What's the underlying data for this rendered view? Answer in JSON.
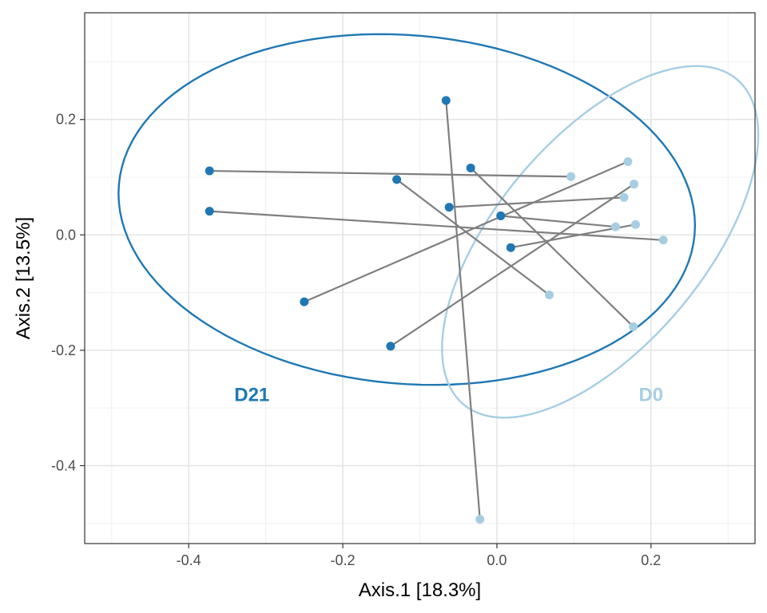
{
  "chart_data": {
    "type": "scatter",
    "xlabel": "Axis.1   [18.3%]",
    "ylabel": "Axis.2   [13.5%]",
    "xlim": [
      -0.535,
      0.335
    ],
    "ylim": [
      -0.535,
      0.385
    ],
    "x_ticks": [
      -0.4,
      -0.2,
      0.0,
      0.2
    ],
    "x_tick_labels": [
      "-0.4",
      "-0.2",
      "0.0",
      "0.2"
    ],
    "y_ticks": [
      -0.4,
      -0.2,
      0.0,
      0.2
    ],
    "y_tick_labels": [
      "-0.4",
      "-0.2",
      "0.0",
      "0.2"
    ],
    "grid": true,
    "colors": {
      "D21": "#1f78b4",
      "D0": "#a6cee3",
      "connector": "#7f7f7f"
    },
    "groups": [
      {
        "name": "D21",
        "label": "D21",
        "points": [
          {
            "id": "s1",
            "x": -0.373,
            "y": 0.111
          },
          {
            "id": "s2",
            "x": -0.373,
            "y": 0.041
          },
          {
            "id": "s3",
            "x": -0.13,
            "y": 0.096
          },
          {
            "id": "s4",
            "x": -0.066,
            "y": 0.233
          },
          {
            "id": "s5",
            "x": -0.034,
            "y": 0.116
          },
          {
            "id": "s6",
            "x": -0.062,
            "y": 0.048
          },
          {
            "id": "s7",
            "x": 0.005,
            "y": 0.033
          },
          {
            "id": "s8",
            "x": 0.018,
            "y": -0.022
          },
          {
            "id": "s9",
            "x": -0.25,
            "y": -0.116
          },
          {
            "id": "s10",
            "x": -0.138,
            "y": -0.193
          }
        ],
        "ellipse": {
          "cx": -0.117,
          "cy": 0.044,
          "rx": 0.375,
          "ry": 0.302,
          "angle_deg": -5
        }
      },
      {
        "name": "D0",
        "label": "D0",
        "points": [
          {
            "id": "s1",
            "x": 0.096,
            "y": 0.101
          },
          {
            "id": "s2",
            "x": 0.216,
            "y": -0.009
          },
          {
            "id": "s3",
            "x": 0.068,
            "y": -0.104
          },
          {
            "id": "s4",
            "x": -0.022,
            "y": -0.493
          },
          {
            "id": "s5",
            "x": 0.177,
            "y": -0.159
          },
          {
            "id": "s6",
            "x": 0.165,
            "y": 0.065
          },
          {
            "id": "s7",
            "x": 0.154,
            "y": 0.014
          },
          {
            "id": "s8",
            "x": 0.18,
            "y": 0.018
          },
          {
            "id": "s9",
            "x": 0.17,
            "y": 0.127
          },
          {
            "id": "s10",
            "x": 0.178,
            "y": 0.088
          }
        ],
        "ellipse": {
          "cx": 0.134,
          "cy": -0.012,
          "rx": 0.135,
          "ry": 0.368,
          "angle_deg": -40
        }
      }
    ]
  }
}
